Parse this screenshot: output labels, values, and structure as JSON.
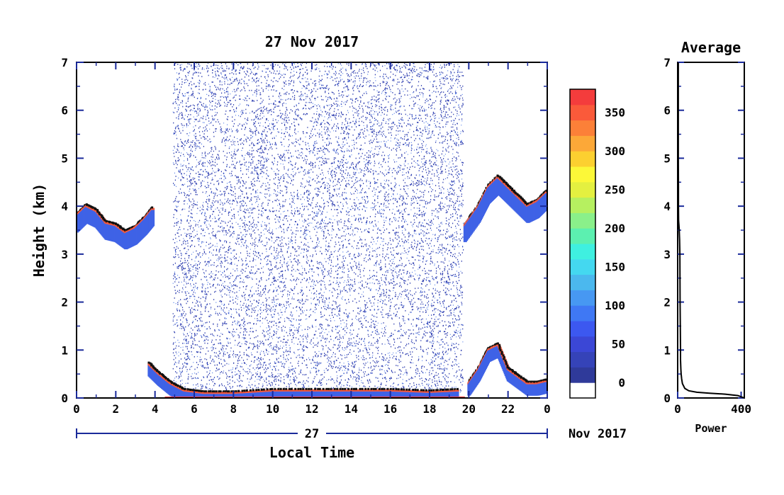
{
  "chart_data": [
    {
      "type": "heatmap",
      "title": "27 Nov 2017",
      "xlabel": "Local Time",
      "ylabel": "Height (km)",
      "xlim": [
        0,
        24
      ],
      "ylim": [
        0,
        7
      ],
      "xticks": [
        "0",
        "2",
        "4",
        "6",
        "8",
        "10",
        "12",
        "14",
        "16",
        "18",
        "20",
        "22",
        "0"
      ],
      "yticks": [
        "0",
        "1",
        "2",
        "3",
        "4",
        "5",
        "6",
        "7"
      ],
      "date_axis": {
        "day_label": "27",
        "month_label": "Nov 2017"
      },
      "colorbar": {
        "ticks": [
          "0",
          "50",
          "100",
          "150",
          "200",
          "250",
          "300",
          "350"
        ],
        "range": [
          0,
          380
        ],
        "colors": [
          "#ffffff",
          "#2f3a9a",
          "#3543b8",
          "#3b47d6",
          "#3c58f0",
          "#3f78f4",
          "#4798f2",
          "#4bb8ee",
          "#44d8f0",
          "#3ff0e0",
          "#5cf0b0",
          "#8af08a",
          "#b6f060",
          "#e4f040",
          "#fcf838",
          "#fcd030",
          "#fca838",
          "#fc8038",
          "#fa5a3a",
          "#f43c3c"
        ]
      },
      "layers": [
        {
          "name": "cloud-base-2-4km",
          "x": [
            0,
            0.5,
            1,
            1.5,
            2,
            2.5,
            3,
            3.5,
            3.9
          ],
          "y": [
            3.8,
            4.0,
            3.9,
            3.65,
            3.6,
            3.45,
            3.55,
            3.75,
            3.95
          ]
        },
        {
          "name": "surface-layer",
          "x": [
            3.7,
            4.2,
            4.8,
            5.5,
            6.5,
            8,
            10,
            12,
            14,
            16,
            18,
            19.5
          ],
          "y": [
            0.7,
            0.5,
            0.3,
            0.15,
            0.1,
            0.1,
            0.15,
            0.15,
            0.15,
            0.15,
            0.12,
            0.15
          ]
        },
        {
          "name": "evening-cloud",
          "x": [
            19.8,
            20.5,
            21,
            21.5,
            22,
            22.5,
            23,
            23.5,
            24
          ],
          "y": [
            3.6,
            4.0,
            4.4,
            4.6,
            4.4,
            4.2,
            4.0,
            4.1,
            4.3
          ]
        },
        {
          "name": "evening-surface",
          "x": [
            20,
            20.5,
            21,
            21.5,
            22,
            22.5,
            23,
            23.5,
            24
          ],
          "y": [
            0.3,
            0.6,
            1.0,
            1.1,
            0.6,
            0.45,
            0.3,
            0.3,
            0.35
          ]
        }
      ]
    },
    {
      "type": "line",
      "title": "Average",
      "xlabel": "Power",
      "ylim": [
        0,
        7
      ],
      "xlim": [
        0,
        420
      ],
      "xticks": [
        "0",
        "400"
      ],
      "yticks": [
        "0",
        "1",
        "2",
        "3",
        "4",
        "5",
        "6",
        "7"
      ],
      "series": [
        {
          "x": [
            420,
            380,
            300,
            200,
            120,
            70,
            45,
            30,
            25,
            22,
            20,
            18,
            18,
            15,
            14,
            12,
            10,
            8,
            6,
            5,
            5,
            5,
            4,
            4,
            4,
            4
          ],
          "y": [
            0.0,
            0.05,
            0.08,
            0.1,
            0.12,
            0.15,
            0.2,
            0.3,
            0.4,
            0.5,
            0.6,
            0.8,
            1.0,
            2.0,
            3.0,
            3.3,
            3.5,
            3.6,
            3.7,
            4.0,
            4.2,
            4.4,
            5.0,
            6.0,
            6.5,
            7.0
          ]
        }
      ]
    }
  ]
}
